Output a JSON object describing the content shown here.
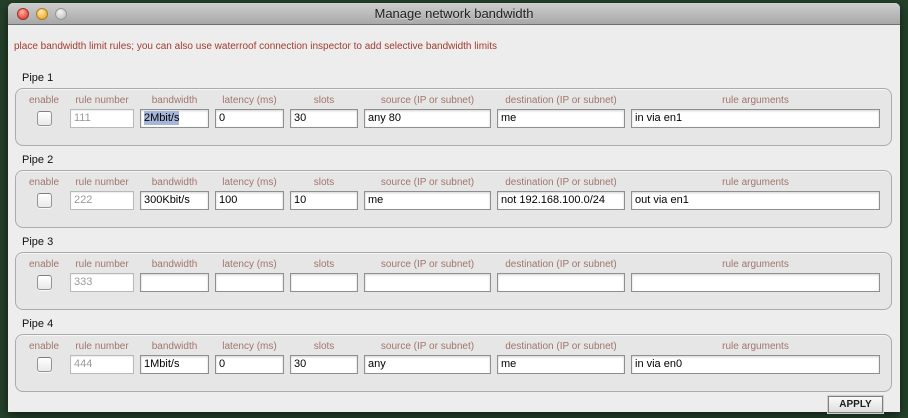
{
  "window": {
    "title": "Manage network bandwidth"
  },
  "instruction": "place bandwidth limit rules; you can also use waterroof connection inspector to add selective bandwidth limits",
  "columns": [
    "enable",
    "rule number",
    "bandwidth",
    "latency (ms)",
    "slots",
    "source (IP or subnet)",
    "destination (IP or subnet)",
    "rule arguments"
  ],
  "pipes": [
    {
      "label": "Pipe 1",
      "enabled": false,
      "rule_number": "111",
      "bandwidth": "2Mbit/s",
      "bandwidth_text_selected": true,
      "latency": "0",
      "slots": "30",
      "source": "any 80",
      "destination": "me",
      "rule_arguments": "in via en1"
    },
    {
      "label": "Pipe 2",
      "enabled": false,
      "rule_number": "222",
      "bandwidth": "300Kbit/s",
      "latency": "100",
      "slots": "10",
      "source": "me",
      "destination": "not 192.168.100.0/24",
      "rule_arguments": "out via en1"
    },
    {
      "label": "Pipe 3",
      "enabled": false,
      "rule_number": "333",
      "bandwidth": "",
      "latency": "",
      "slots": "",
      "source": "",
      "destination": "",
      "rule_arguments": ""
    },
    {
      "label": "Pipe 4",
      "enabled": false,
      "rule_number": "444",
      "bandwidth": "1Mbit/s",
      "latency": "0",
      "slots": "30",
      "source": "any",
      "destination": "me",
      "rule_arguments": "in via en0"
    }
  ],
  "footer": {
    "apply_label": "APPLY"
  },
  "colors": {
    "desktop_background": "#24402a",
    "window_background": "#ededed",
    "instruction_text": "#a23c2f",
    "column_header_text": "#a1756b",
    "text_selection": "#a4b6da"
  }
}
